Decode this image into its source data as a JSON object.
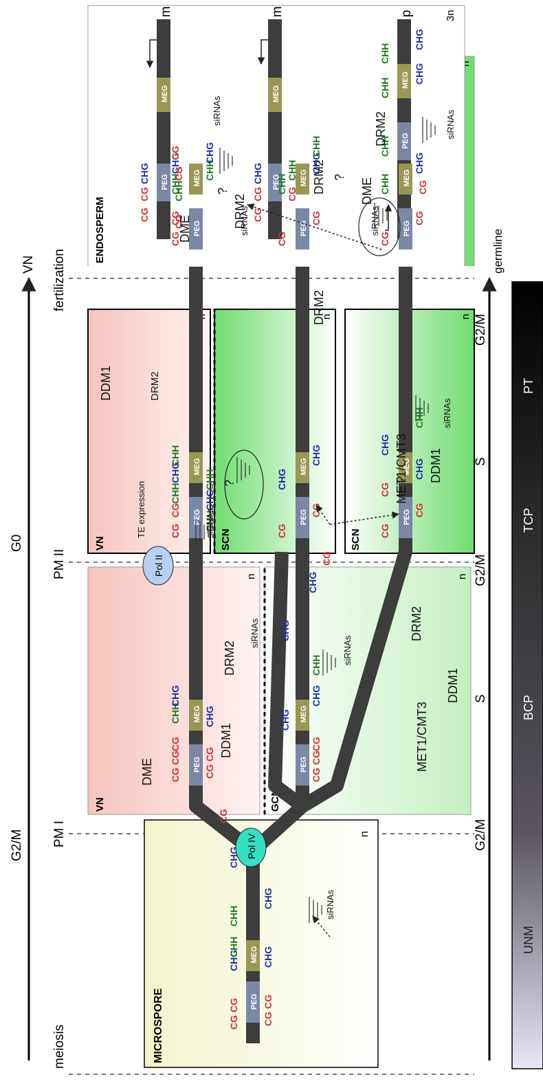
{
  "timeline_top": {
    "stages": [
      "meiosis",
      "G2/M",
      "PM I",
      "G0",
      "PM II",
      "fertilization",
      "VN"
    ]
  },
  "timeline_bottom": {
    "phases": [
      "G2/M",
      "S",
      "G2/M",
      "S",
      "G2/M",
      "germline"
    ],
    "bar": [
      "UNM",
      "BCP",
      "TCP",
      "PT"
    ]
  },
  "panels": {
    "microspore": {
      "title": "MICROSPORE",
      "ploidy": "n"
    },
    "vn": {
      "title": "VN",
      "ploidy": "n"
    },
    "gcn": {
      "title": "GCN",
      "ploidy": "n"
    },
    "scn": {
      "title": "SCN",
      "ploidy": "n"
    },
    "endosperm": {
      "title": "ENDOSPERM",
      "ploidy": "3n",
      "maternal": "m",
      "paternal": "p"
    }
  },
  "gene_labels": {
    "peg": "PEG",
    "meg": "MEG"
  },
  "methylation": {
    "cg": "CG",
    "chg": "CHG",
    "chh": "CHH"
  },
  "enzymes": {
    "pol4": "Pol IV",
    "pol2": "Pol II",
    "dme": "DME",
    "ddm1": "DDM1",
    "drm2": "DRM2",
    "met1": "MET1/CMT3",
    "sirnas": "siRNAs",
    "te_expression": "TE expression",
    "question": "?"
  },
  "colors": {
    "chromosome": "#3d3d3d",
    "peg_gene": "#7b88a5",
    "meg_gene": "#9a9654",
    "cg": "#d0312d",
    "chg": "#1f2fa6",
    "chh": "#1e7c24",
    "vn_bg": "#f6c3bd",
    "green_bg": "#6fdc6f",
    "micro_bg": "#f3f4cb",
    "pol4": "#34e0c4",
    "pol2": "#b7cff2"
  }
}
